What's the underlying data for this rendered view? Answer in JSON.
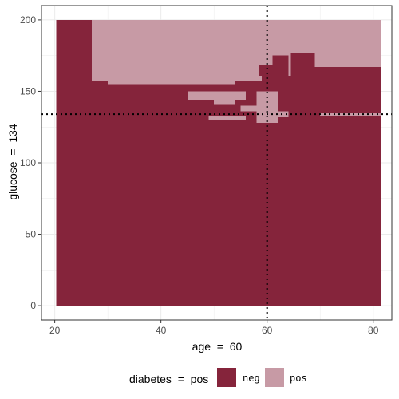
{
  "chart_data": {
    "type": "heatmap",
    "x": {
      "label": "age  =  60",
      "range": [
        20.3,
        81.5
      ],
      "ticks": [
        20,
        40,
        60,
        80
      ],
      "tick_labels": [
        "20",
        "40",
        "60",
        "80"
      ]
    },
    "y": {
      "label": "glucose  =  134",
      "range": [
        0,
        200
      ],
      "ticks": [
        0,
        50,
        100,
        150,
        200
      ],
      "tick_labels": [
        "0",
        "50",
        "100",
        "150",
        "200"
      ]
    },
    "xlim": [
      17.5,
      83.5
    ],
    "ylim": [
      -10,
      210
    ],
    "grid": true,
    "reference_lines": {
      "x": 60,
      "y": 134
    },
    "classes": [
      {
        "name": "neg",
        "color": "#85243b"
      },
      {
        "name": "pos",
        "color": "#c79aa5"
      }
    ],
    "pos_regions": [
      {
        "x": [
          27,
          81.5
        ],
        "y": [
          161,
          200
        ]
      },
      {
        "x": [
          27,
          30
        ],
        "y": [
          157,
          161
        ]
      },
      {
        "x": [
          30,
          54
        ],
        "y": [
          155,
          161
        ]
      },
      {
        "x": [
          54,
          59
        ],
        "y": [
          157,
          161
        ]
      },
      {
        "x": [
          45,
          56
        ],
        "y": [
          144,
          150
        ]
      },
      {
        "x": [
          50,
          54
        ],
        "y": [
          141,
          144
        ]
      },
      {
        "x": [
          49,
          56
        ],
        "y": [
          130,
          133
        ]
      },
      {
        "x": [
          55,
          58
        ],
        "y": [
          136,
          140
        ]
      },
      {
        "x": [
          58,
          62
        ],
        "y": [
          128,
          150
        ]
      },
      {
        "x": [
          62,
          64
        ],
        "y": [
          132,
          136
        ]
      },
      {
        "x": [
          63,
          65
        ],
        "y": [
          168,
          172
        ]
      },
      {
        "x": [
          70,
          81.5
        ],
        "y": [
          133,
          135
        ]
      }
    ],
    "neg_overlays": [
      {
        "x": [
          58.5,
          61
        ],
        "y": [
          161,
          168
        ]
      },
      {
        "x": [
          61,
          64
        ],
        "y": [
          161,
          175
        ]
      },
      {
        "x": [
          64.5,
          69
        ],
        "y": [
          161,
          177
        ]
      },
      {
        "x": [
          69,
          81.5
        ],
        "y": [
          161,
          167
        ]
      }
    ],
    "legend": {
      "title": "diabetes  =  pos",
      "position": "bottom",
      "entries": [
        "neg",
        "pos"
      ]
    }
  }
}
